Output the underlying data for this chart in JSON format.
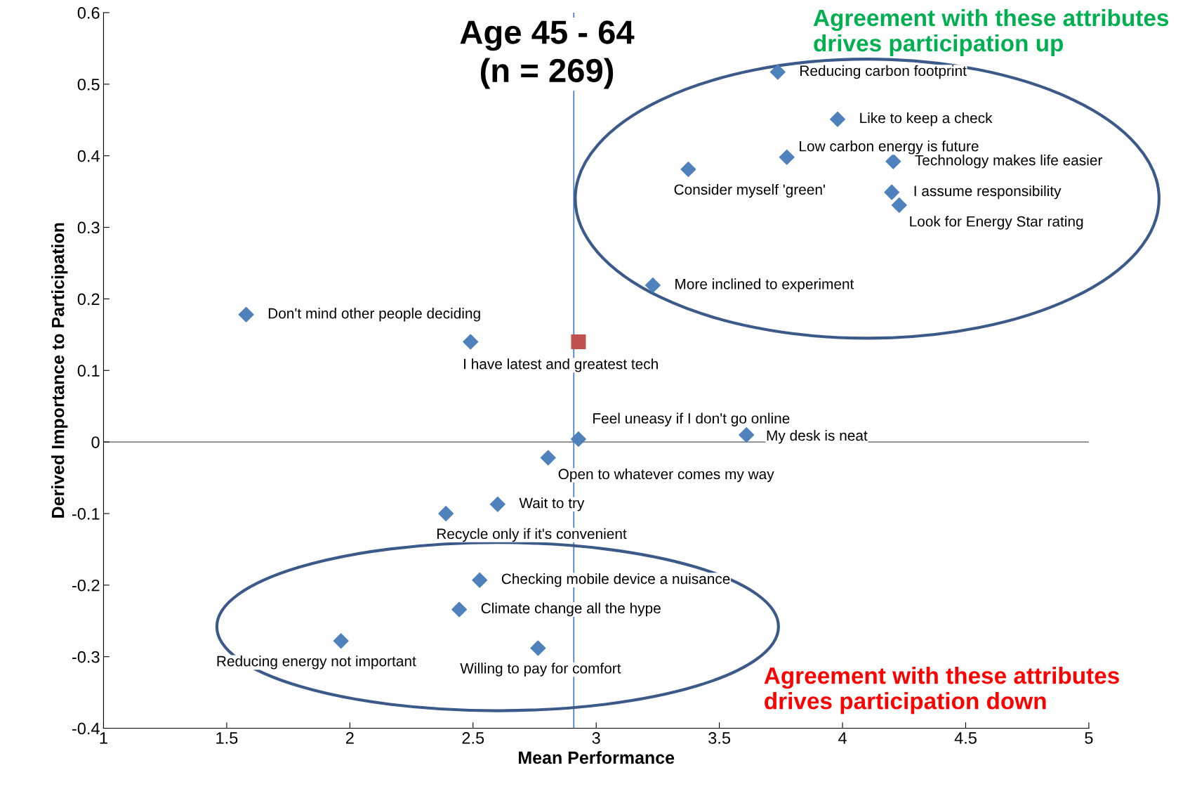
{
  "chart_data": {
    "type": "scatter",
    "title": "Age 45 - 64\n(n = 269)",
    "xlabel": "Mean Performance",
    "ylabel": "Derived Importance to Participation",
    "xlim": [
      1,
      5
    ],
    "xticks": [
      1,
      1.5,
      2,
      2.5,
      3,
      3.5,
      4,
      4.5,
      5
    ],
    "ylim": [
      -0.4,
      0.6
    ],
    "yticks": [
      -0.4,
      -0.3,
      -0.2,
      -0.1,
      0,
      0.1,
      0.2,
      0.3,
      0.4,
      0.5,
      0.6
    ],
    "grid": false,
    "legend": false,
    "marker": "diamond",
    "series": [
      {
        "color": "#4f81bd",
        "x": [
          3.737,
          3.98,
          3.774,
          4.206,
          3.374,
          4.2,
          4.23,
          3.23,
          1.579,
          2.49,
          2.928,
          3.61,
          2.805,
          2.6,
          2.39,
          2.527,
          2.444,
          1.964,
          2.764
        ],
        "values": [
          0.517,
          0.451,
          0.398,
          0.392,
          0.381,
          0.349,
          0.331,
          0.219,
          0.178,
          0.14,
          0.004,
          0.01,
          -0.022,
          -0.087,
          -0.1,
          -0.193,
          -0.234,
          -0.278,
          -0.288
        ]
      },
      {
        "color": "#c0504d",
        "marker": "square",
        "x": [
          2.928
        ],
        "values": [
          0.14
        ]
      }
    ],
    "ref_lines": [
      {
        "axis": "x",
        "value": 2.909,
        "color": "#4f81bd"
      },
      {
        "axis": "y",
        "value": 0,
        "color": "#868686"
      }
    ],
    "annotations": [
      {
        "text": "Reducing carbon footprint",
        "x": 3.737,
        "y": 0.517
      },
      {
        "text": "Like to keep a check",
        "x": 3.98,
        "y": 0.451
      },
      {
        "text": "Low carbon energy is future",
        "x": 3.774,
        "y": 0.398
      },
      {
        "text": "Technology makes life easier",
        "x": 4.206,
        "y": 0.392
      },
      {
        "text": "Consider myself 'green'",
        "x": 3.374,
        "y": 0.381
      },
      {
        "text": "I assume responsibility",
        "x": 4.2,
        "y": 0.349
      },
      {
        "text": "Look for Energy Star rating",
        "x": 4.23,
        "y": 0.331
      },
      {
        "text": "More inclined to experiment",
        "x": 3.23,
        "y": 0.219
      },
      {
        "text": "Don't mind other people deciding",
        "x": 1.579,
        "y": 0.178
      },
      {
        "text": "I have latest and greatest tech",
        "x": 2.49,
        "y": 0.14
      },
      {
        "text": "Feel uneasy if I don't go online",
        "x": 2.928,
        "y": 0.004
      },
      {
        "text": "My desk is neat",
        "x": 3.61,
        "y": 0.01
      },
      {
        "text": "Open to whatever comes my way",
        "x": 2.805,
        "y": -0.022
      },
      {
        "text": "Wait to try",
        "x": 2.6,
        "y": -0.087
      },
      {
        "text": "Recycle only if it's convenient",
        "x": 2.39,
        "y": -0.1
      },
      {
        "text": "Checking mobile device a nuisance",
        "x": 2.527,
        "y": -0.193
      },
      {
        "text": "Climate change all the hype",
        "x": 2.444,
        "y": -0.234
      },
      {
        "text": "Reducing energy not important",
        "x": 1.964,
        "y": -0.278
      },
      {
        "text": "Willing to pay for comfort",
        "x": 2.764,
        "y": -0.288
      },
      "Agreement with these attributes\ndrives participation up",
      "Agreement with these attributes\ndrives participation down"
    ]
  }
}
